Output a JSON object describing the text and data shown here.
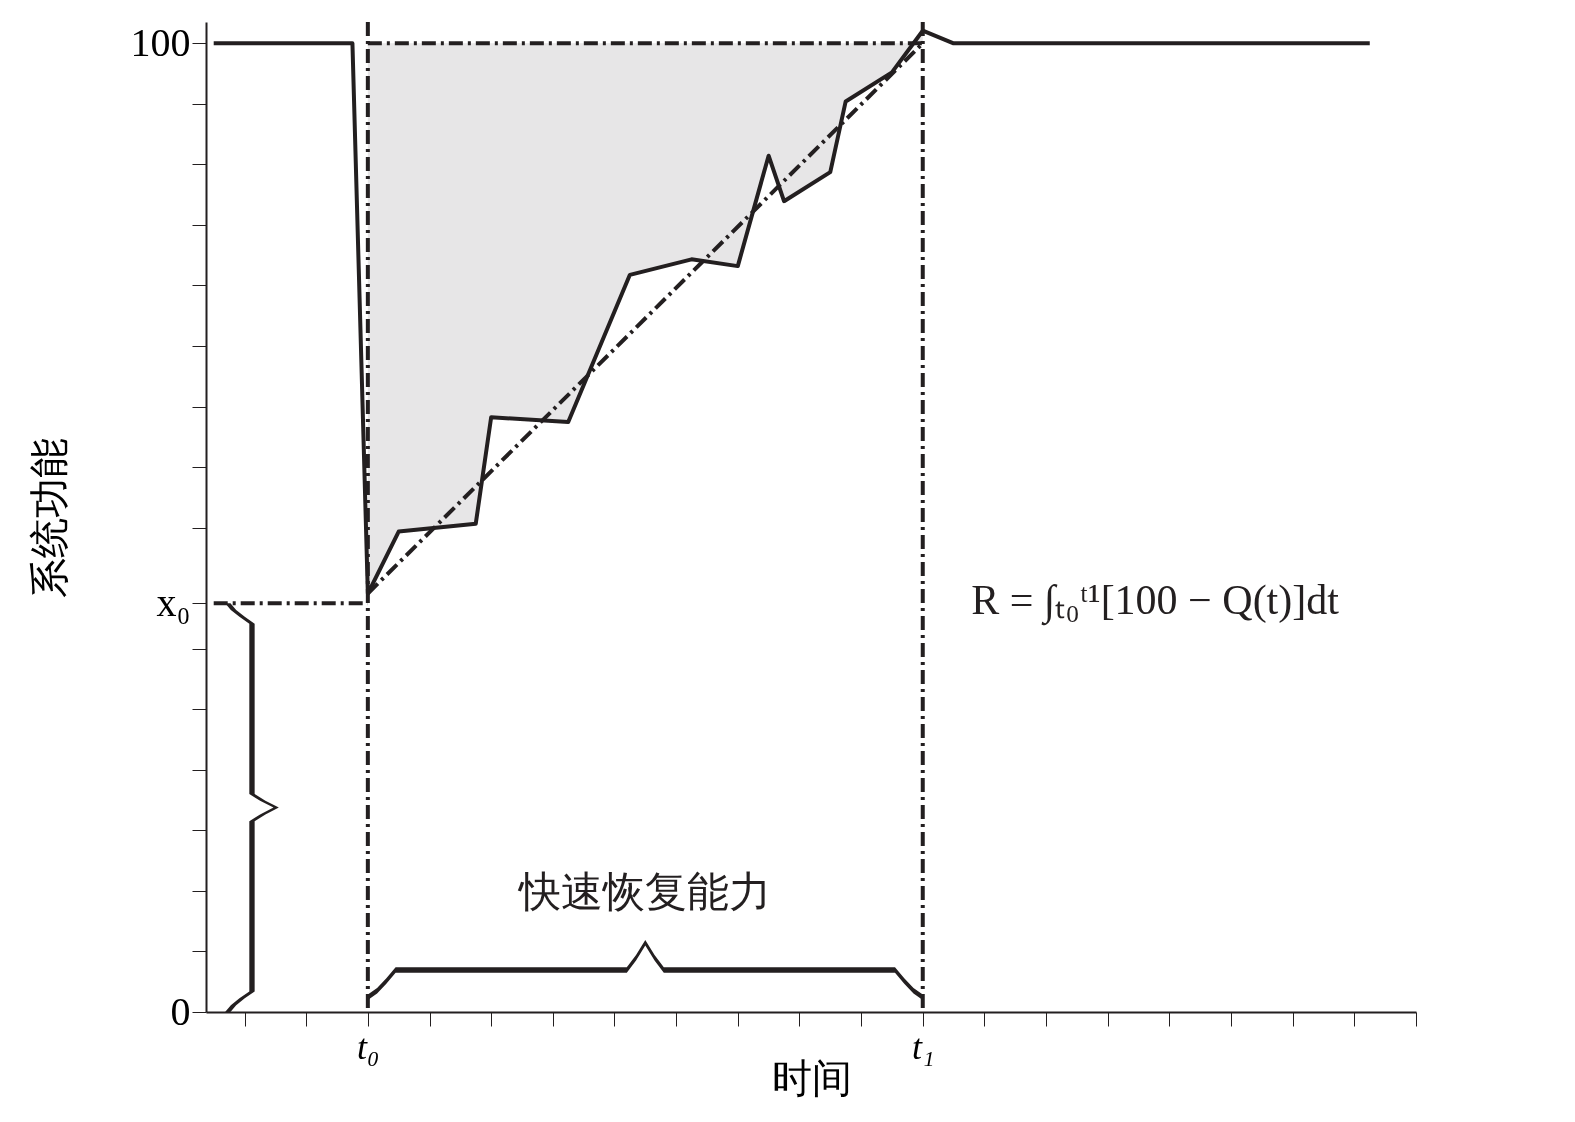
{
  "chart_data": {
    "type": "line",
    "xlabel": "时间",
    "ylabel": "系统功能",
    "categories": [
      null,
      null,
      null,
      null,
      null,
      null,
      null,
      null,
      null,
      null,
      "t₀",
      null,
      null,
      null,
      null,
      null,
      null,
      null,
      null,
      null,
      null,
      null,
      null,
      null,
      null,
      null,
      null,
      null,
      null,
      null,
      null,
      null,
      null,
      null,
      null,
      null,
      null,
      null,
      null,
      null,
      null,
      null,
      null,
      null,
      null,
      null,
      "t₁",
      null,
      null,
      null,
      null,
      null,
      null,
      null,
      null,
      null,
      null,
      null,
      null,
      null,
      null,
      null,
      null,
      null,
      null,
      null,
      null,
      null,
      null,
      null,
      null,
      null,
      null,
      null,
      null,
      null,
      null,
      null,
      null
    ],
    "ylim": [
      0,
      102.2
    ],
    "yticks": [
      0,
      {
        "value": 6.25,
        "label": null
      },
      {
        "value": 12.5,
        "label": null
      },
      {
        "value": 18.75,
        "label": null
      },
      {
        "value": 25,
        "label": null
      },
      {
        "value": 31.25,
        "label": null
      },
      {
        "value": 37.5,
        "label": null
      },
      {
        "value": 42.2,
        "label": "x₀"
      },
      {
        "value": 50,
        "label": null
      },
      {
        "value": 56.25,
        "label": null
      },
      {
        "value": 62.5,
        "label": null
      },
      {
        "value": 68.75,
        "label": null
      },
      {
        "value": 75,
        "label": null
      },
      {
        "value": 81.25,
        "label": null
      },
      {
        "value": 87.5,
        "label": null
      },
      {
        "value": 93.75,
        "label": null
      },
      100
    ],
    "grid": false,
    "marker": "none",
    "series": [
      {
        "type": "line",
        "color": "#231f20",
        "line_style": "solid",
        "lower": [
          null,
          null,
          null,
          null,
          null,
          null,
          null,
          null,
          null,
          null,
          43.2,
          null,
          49.6,
          null,
          null,
          null,
          null,
          50.4,
          61.4,
          null,
          null,
          null,
          null,
          60.9,
          null,
          null,
          null,
          76.1,
          null,
          null,
          null,
          77.7,
          null,
          null,
          77.0,
          null,
          88.4,
          83.7,
          null,
          null,
          86.7,
          94.0,
          null,
          null,
          97.0,
          null,
          101.3,
          null,
          null,
          null,
          null,
          null,
          null,
          null,
          null,
          null,
          null,
          null,
          null,
          null,
          null,
          null,
          null,
          null,
          null,
          null,
          null,
          null,
          null,
          null,
          null,
          null,
          null,
          null,
          null,
          null,
          null,
          null,
          null
        ],
        "upper": [
          null,
          null,
          null,
          null,
          null,
          null,
          null,
          null,
          null,
          null,
          100,
          null,
          100,
          null,
          null,
          null,
          null,
          100,
          100,
          null,
          null,
          null,
          null,
          100,
          null,
          null,
          null,
          100,
          null,
          null,
          null,
          100,
          null,
          null,
          100,
          null,
          100,
          100,
          null,
          null,
          100,
          100,
          null,
          null,
          100,
          null,
          100,
          null,
          null,
          null,
          null,
          null,
          null,
          null,
          null,
          null,
          null,
          null,
          null,
          null,
          null,
          null,
          null,
          null,
          null,
          null,
          null,
          null,
          null,
          null,
          null,
          null,
          null,
          null,
          null,
          null,
          null,
          null,
          null
        ],
        "values": [
          100,
          null,
          null,
          null,
          null,
          null,
          null,
          null,
          null,
          100,
          43.2,
          null,
          49.6,
          null,
          null,
          null,
          null,
          50.4,
          61.4,
          null,
          null,
          null,
          null,
          60.9,
          null,
          null,
          null,
          76.1,
          null,
          null,
          null,
          77.7,
          null,
          null,
          77.0,
          null,
          88.4,
          83.7,
          null,
          null,
          86.7,
          94.0,
          null,
          null,
          97.0,
          null,
          101.3,
          null,
          100,
          null,
          null,
          null,
          null,
          null,
          null,
          null,
          null,
          null,
          null,
          null,
          null,
          null,
          null,
          null,
          null,
          null,
          null,
          null,
          null,
          null,
          null,
          null,
          null,
          null,
          null,
          100,
          null,
          null,
          null
        ]
      },
      {
        "type": "line",
        "color": "#231f20",
        "line_style": "dashed",
        "values": [
          null,
          null,
          null,
          null,
          null,
          null,
          null,
          null,
          null,
          null,
          43.2,
          null,
          null,
          null,
          null,
          null,
          null,
          null,
          null,
          null,
          null,
          null,
          null,
          null,
          null,
          null,
          null,
          null,
          null,
          null,
          null,
          null,
          null,
          null,
          null,
          null,
          null,
          null,
          null,
          null,
          null,
          null,
          null,
          null,
          null,
          null,
          100,
          null,
          null,
          null,
          null,
          null,
          null,
          null,
          null,
          null,
          null,
          null,
          null,
          null,
          null,
          null,
          null,
          null,
          null,
          null,
          null,
          null,
          null,
          null,
          null,
          null,
          null,
          null,
          null,
          null,
          null,
          null,
          null
        ]
      },
      {
        "type": "line",
        "color": "#231f20",
        "line_style": "dashed",
        "values": [
          42.2,
          null,
          null,
          null,
          null,
          null,
          null,
          null,
          null,
          null,
          42.2,
          null,
          null,
          null,
          null,
          null,
          null,
          null,
          null,
          null,
          null,
          null,
          null,
          null,
          null,
          null,
          null,
          null,
          null,
          null,
          null,
          null,
          null,
          null,
          null,
          null,
          null,
          null,
          null,
          null,
          null,
          null,
          null,
          null,
          null,
          null,
          null,
          null,
          null,
          null,
          null,
          null,
          null,
          null,
          null,
          null,
          null,
          null,
          null,
          null,
          null,
          null,
          null,
          null,
          null,
          null,
          null,
          null,
          null,
          null,
          null,
          null,
          null,
          null,
          null,
          null,
          null,
          null,
          null
        ]
      },
      {
        "type": "line",
        "color": "#231f20",
        "line_style": "dashed",
        "values": [
          null,
          null,
          null,
          null,
          null,
          null,
          null,
          null,
          null,
          null,
          100,
          null,
          null,
          null,
          null,
          null,
          null,
          null,
          null,
          null,
          null,
          null,
          null,
          null,
          null,
          null,
          null,
          null,
          null,
          null,
          null,
          null,
          null,
          null,
          null,
          null,
          null,
          null,
          null,
          null,
          null,
          null,
          null,
          null,
          null,
          null,
          100,
          null,
          null,
          null,
          null,
          null,
          null,
          null,
          null,
          null,
          null,
          null,
          null,
          null,
          null,
          null,
          null,
          null,
          null,
          null,
          null,
          null,
          null,
          null,
          null,
          null,
          null,
          null,
          null,
          null,
          null,
          null,
          null
        ]
      }
    ],
    "ref_lines": [
      {
        "axis": "x",
        "value": "t₀",
        "line_style": "dashed",
        "color": "#231f20"
      },
      {
        "axis": "x",
        "value": "t₁",
        "line_style": "dashed",
        "color": "#231f20"
      }
    ],
    "annotations": [
      "快速恢复能力",
      "R = ∫ₜ₀ᵗ¹[100 − Q(t)]dt"
    ]
  }
}
